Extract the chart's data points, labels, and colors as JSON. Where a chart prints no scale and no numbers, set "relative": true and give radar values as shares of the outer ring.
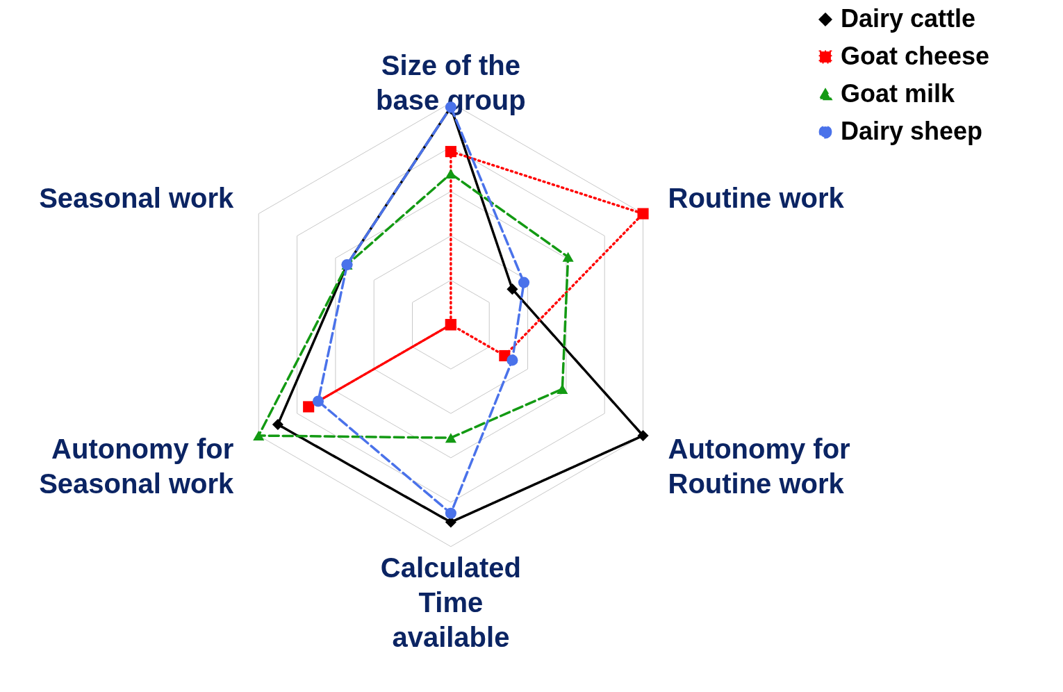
{
  "chart_data": {
    "type": "radar",
    "relative": true,
    "grid": true,
    "legend": "right",
    "categories": [
      "Size of the base group",
      "Routine work",
      "Autonomy for Routine work",
      "Calculated Time available",
      "Autonomy for Seasonal work",
      "Seasonal work"
    ],
    "series": [
      {
        "name": "Dairy cattle",
        "color": "#000000",
        "marker": "diamond",
        "line_style": "solid",
        "values": [
          0.98,
          0.32,
          1.0,
          0.89,
          0.9,
          0.54
        ]
      },
      {
        "name": "Goat cheese",
        "color": "#ff0000",
        "marker": "square",
        "line_style": "dotted",
        "values": [
          0.78,
          1.0,
          0.28,
          0,
          0.74,
          0
        ]
      },
      {
        "name": "Goat milk",
        "color": "#139a13",
        "marker": "triangle",
        "line_style": "dashed",
        "values": [
          0.68,
          0.61,
          0.58,
          0.51,
          1.0,
          0.54
        ]
      },
      {
        "name": "Dairy sheep",
        "color": "#4a72ea",
        "marker": "circle",
        "line_style": "dashed",
        "values": [
          0.98,
          0.38,
          0.32,
          0.85,
          0.69,
          0.54
        ]
      }
    ]
  }
}
